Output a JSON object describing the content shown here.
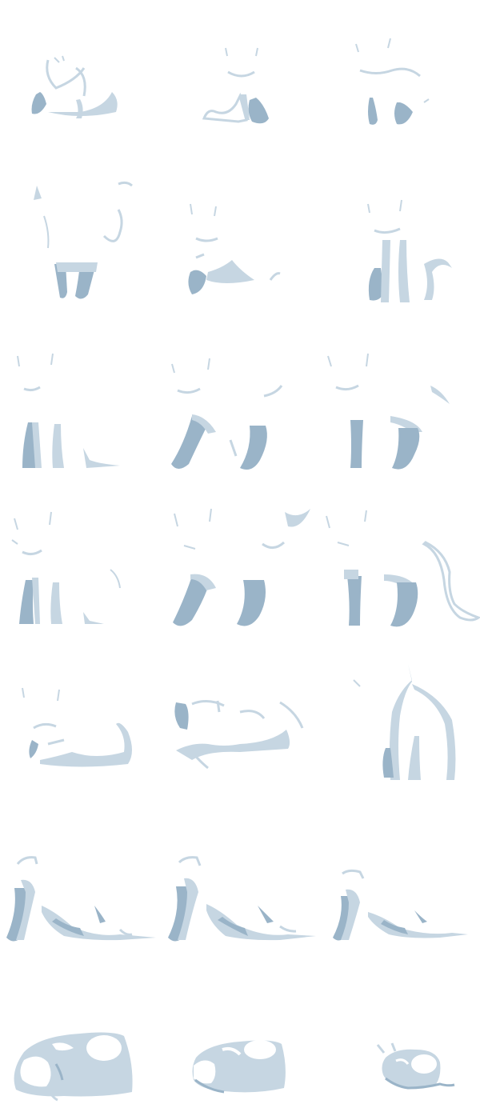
{
  "sheet": {
    "background_color": "#ffffff",
    "palette": {
      "light_shade": "#c6d6e2",
      "dark_shade": "#9ab4c8",
      "highlight": "#ffffff"
    },
    "grid": {
      "columns": 3,
      "rows": 7
    },
    "frames": [
      {
        "row": 0,
        "col": 0,
        "pose": "sit-curled"
      },
      {
        "row": 0,
        "col": 1,
        "pose": "sit-front"
      },
      {
        "row": 0,
        "col": 2,
        "pose": "sit-front-faint"
      },
      {
        "row": 1,
        "col": 0,
        "pose": "stand-front"
      },
      {
        "row": 1,
        "col": 1,
        "pose": "crouch-side"
      },
      {
        "row": 1,
        "col": 2,
        "pose": "sit-tall"
      },
      {
        "row": 2,
        "col": 0,
        "pose": "stand-side-a"
      },
      {
        "row": 2,
        "col": 1,
        "pose": "walk-side-a"
      },
      {
        "row": 2,
        "col": 2,
        "pose": "walk-side-b"
      },
      {
        "row": 3,
        "col": 0,
        "pose": "stand-side-b"
      },
      {
        "row": 3,
        "col": 1,
        "pose": "walk-side-c"
      },
      {
        "row": 3,
        "col": 2,
        "pose": "walk-side-tail"
      },
      {
        "row": 4,
        "col": 0,
        "pose": "lie-loaf"
      },
      {
        "row": 4,
        "col": 1,
        "pose": "lie-curl"
      },
      {
        "row": 4,
        "col": 2,
        "pose": "sit-back"
      },
      {
        "row": 5,
        "col": 0,
        "pose": "stretch-a"
      },
      {
        "row": 5,
        "col": 1,
        "pose": "stretch-b"
      },
      {
        "row": 5,
        "col": 2,
        "pose": "stretch-c"
      },
      {
        "row": 6,
        "col": 0,
        "pose": "sleep-ball-large"
      },
      {
        "row": 6,
        "col": 1,
        "pose": "sleep-ball-medium"
      },
      {
        "row": 6,
        "col": 2,
        "pose": "sleep-ball-small"
      }
    ]
  }
}
